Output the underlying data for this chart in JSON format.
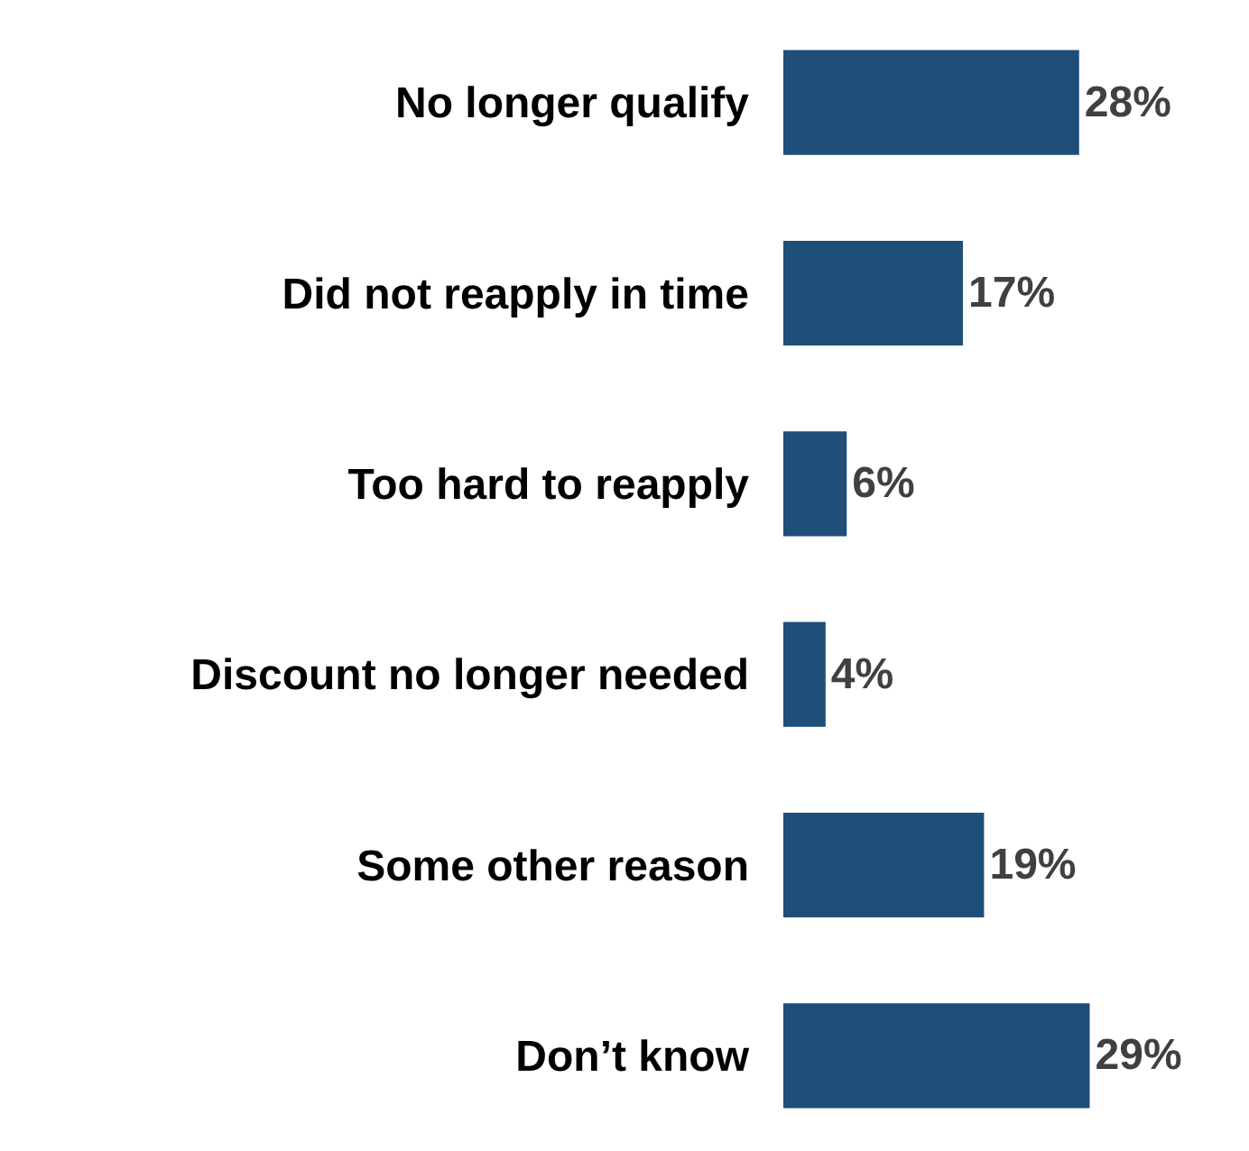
{
  "chart_data": {
    "type": "bar",
    "orientation": "horizontal",
    "categories": [
      "No longer qualify",
      "Did not reapply in time",
      "Too hard to reapply",
      "Discount no longer needed",
      "Some other reason",
      "Don’t know"
    ],
    "values": [
      28,
      17,
      6,
      4,
      19,
      29
    ],
    "color": "#1f4e79",
    "value_labels": [
      "28%",
      "17%",
      "6%",
      "4%",
      "19%",
      "29%"
    ]
  }
}
